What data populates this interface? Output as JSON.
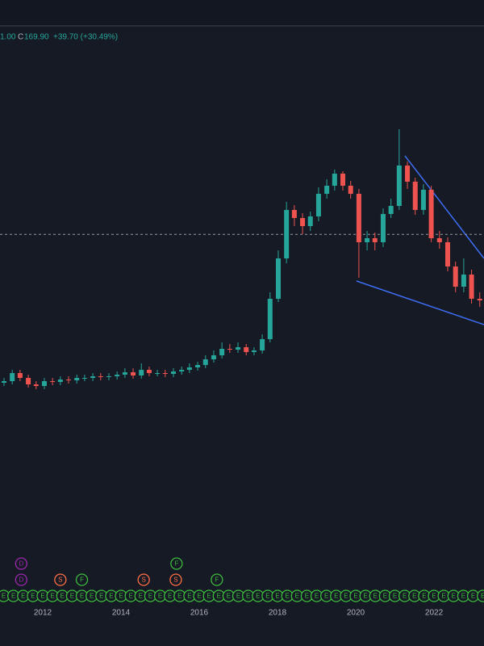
{
  "header": {
    "partial": "1.00",
    "close_label": "C",
    "close": "169.90",
    "change": "+39.70 (+30.49%)"
  },
  "chart_data": {
    "type": "candlestick",
    "x": [
      2011.01,
      2011.22,
      2011.42,
      2011.63,
      2011.83,
      2012.04,
      2012.25,
      2012.45,
      2012.66,
      2012.87,
      2013.07,
      2013.28,
      2013.48,
      2013.69,
      2013.9,
      2014.1,
      2014.31,
      2014.52,
      2014.72,
      2014.93,
      2015.13,
      2015.34,
      2015.55,
      2015.75,
      2015.96,
      2016.16,
      2016.37,
      2016.58,
      2016.78,
      2016.99,
      2017.2,
      2017.4,
      2017.61,
      2017.81,
      2018.02,
      2018.23,
      2018.43,
      2018.64,
      2018.84,
      2019.05,
      2019.26,
      2019.46,
      2019.67,
      2019.87,
      2020.08,
      2020.29,
      2020.49,
      2020.7,
      2020.9,
      2021.11,
      2021.32,
      2021.52,
      2021.73,
      2021.93,
      2022.14,
      2022.35,
      2022.55,
      2022.76,
      2022.96,
      2023.17
    ],
    "open": [
      78,
      79,
      84,
      81,
      77,
      76,
      79,
      78.5,
      80,
      79.5,
      81,
      81,
      82,
      81.5,
      82,
      83,
      84.5,
      82.5,
      86,
      84,
      84,
      83.5,
      85,
      86,
      87.5,
      89,
      92.5,
      95,
      99,
      98.5,
      100,
      97,
      98,
      105,
      130,
      155,
      185,
      180,
      175,
      181,
      195,
      200,
      207.5,
      200,
      195,
      165,
      167.5,
      165,
      182.5,
      187.5,
      212.5,
      202.5,
      185,
      197.5,
      167.5,
      165,
      150,
      137.5,
      145,
      130
    ],
    "high": [
      81,
      86,
      86,
      83,
      79,
      81,
      81,
      82,
      82,
      83,
      83,
      84,
      84,
      84,
      85,
      87,
      87,
      90,
      88,
      86,
      86,
      87,
      88,
      90,
      91,
      95,
      98,
      103,
      102,
      103,
      102,
      100,
      108,
      134,
      160,
      190,
      188,
      183,
      184,
      199,
      204,
      210,
      209,
      203,
      198,
      172,
      171,
      186,
      192,
      235,
      215,
      205,
      201,
      200,
      172,
      168,
      153,
      155,
      148,
      134
    ],
    "low": [
      76,
      77,
      79,
      75,
      74,
      74,
      76.5,
      76.5,
      77.5,
      77.5,
      79,
      79,
      79.5,
      79.5,
      80,
      81,
      80.5,
      80.5,
      82,
      82,
      81.5,
      81.5,
      83,
      84,
      85.5,
      87,
      90.5,
      93,
      96.5,
      96.5,
      95,
      95,
      96,
      103,
      128,
      152,
      175,
      170,
      172,
      178,
      192,
      197,
      197,
      192,
      143,
      160,
      160,
      162,
      180,
      185,
      198,
      182,
      182,
      165,
      161,
      147,
      134,
      134,
      127,
      125
    ],
    "close": [
      79,
      84,
      81,
      77,
      76,
      79,
      78.5,
      80,
      79.5,
      81,
      81,
      82,
      81.5,
      82,
      83,
      84.5,
      82.5,
      86,
      84,
      84,
      83.5,
      85,
      86,
      87.5,
      89,
      92.5,
      95,
      99,
      98.5,
      100,
      97,
      98,
      105,
      130,
      155,
      185,
      180,
      175,
      181,
      195,
      200,
      207.5,
      200,
      195,
      165,
      167.5,
      165,
      182.5,
      187.5,
      212.5,
      202.5,
      185,
      197.5,
      167.5,
      165,
      150,
      137.5,
      145,
      130,
      129
    ],
    "up_color": "#26a69a",
    "down_color": "#ef5350",
    "last_price": 169.9,
    "xlim": [
      2010.907,
      2023.278
    ],
    "xticks": [
      2012,
      2014,
      2016,
      2018,
      2020,
      2022
    ],
    "ylim": [
      -75,
      295
    ],
    "grid": false,
    "event_groups": [
      {
        "label": "E",
        "color": "#3dbb3d",
        "x": [
          2011,
          2011.25,
          2011.5,
          2011.75,
          2012,
          2012.25,
          2012.5,
          2012.75,
          2013,
          2013.25,
          2013.5,
          2013.75,
          2014,
          2014.25,
          2014.5,
          2014.75,
          2015,
          2015.25,
          2015.5,
          2015.75,
          2016,
          2016.25,
          2016.5,
          2016.75,
          2017,
          2017.25,
          2017.5,
          2017.75,
          2018,
          2018.25,
          2018.5,
          2018.75,
          2019,
          2019.25,
          2019.5,
          2019.75,
          2020,
          2020.25,
          2020.5,
          2020.75,
          2021,
          2021.25,
          2021.5,
          2021.75,
          2022,
          2022.25,
          2022.5,
          2022.75,
          2023,
          2023.25
        ]
      },
      {
        "label": "D",
        "color": "#9c27b0",
        "x": [
          2011.45,
          2011.45
        ]
      },
      {
        "label": "S",
        "color": "#ff7043",
        "x": [
          2012.45,
          2014.58,
          2015.4
        ]
      },
      {
        "label": "F",
        "color": "#3dbb3d",
        "x": [
          2013.0,
          2015.42,
          2016.45
        ]
      }
    ]
  }
}
